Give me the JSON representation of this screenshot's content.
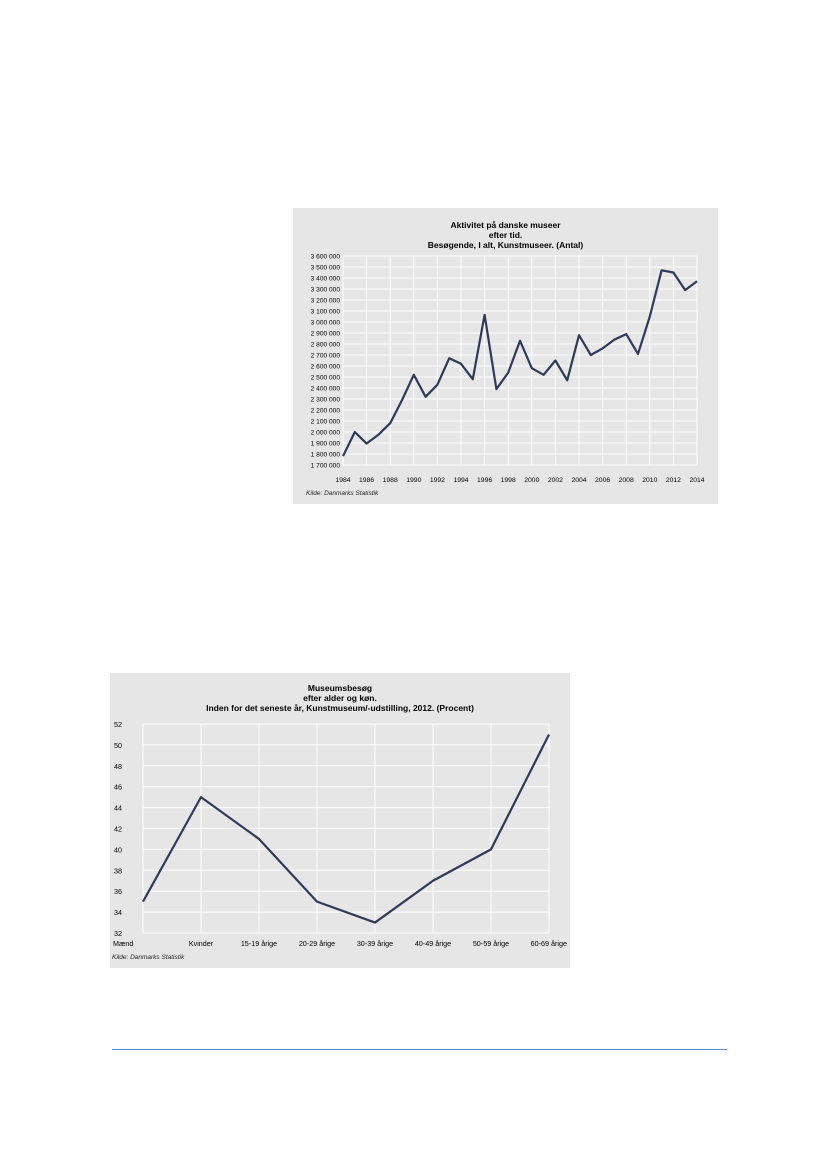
{
  "chart_data": [
    {
      "type": "line",
      "title": [
        "Aktivitet på danske museer",
        "efter tid.",
        "Besøgende, I alt, Kunstmuseer. (Antal)"
      ],
      "x": [
        1984,
        1985,
        1986,
        1987,
        1988,
        1989,
        1990,
        1991,
        1992,
        1993,
        1994,
        1995,
        1996,
        1997,
        1998,
        1999,
        2000,
        2001,
        2002,
        2003,
        2004,
        2005,
        2006,
        2007,
        2008,
        2009,
        2010,
        2011,
        2012,
        2013,
        2014
      ],
      "x_ticks": [
        "1984",
        "1986",
        "1988",
        "1990",
        "1992",
        "1994",
        "1996",
        "1998",
        "2000",
        "2002",
        "2004",
        "2006",
        "2008",
        "2010",
        "2012",
        "2014"
      ],
      "y_ticks": [
        "3 600 000",
        "3 500 000",
        "3 400 000",
        "3 300 000",
        "3 200 000",
        "3 100 000",
        "3 000 000",
        "2 900 000",
        "2 800 000",
        "2 700 000",
        "2 600 000",
        "2 500 000",
        "2 400 000",
        "2 300 000",
        "2 200 000",
        "2 100 000",
        "2 000 000",
        "1 900 000",
        "1 800 000",
        "1 700 000"
      ],
      "series": [
        {
          "values": [
            1780000,
            2000000,
            1895000,
            1975000,
            2080000,
            2290000,
            2520000,
            2320000,
            2430000,
            2670000,
            2620000,
            2480000,
            3065000,
            2390000,
            2540000,
            2830000,
            2580000,
            2520000,
            2650000,
            2470000,
            2880000,
            2700000,
            2760000,
            2840000,
            2890000,
            2710000,
            3050000,
            3470000,
            3450000,
            3290000,
            3370000
          ]
        }
      ],
      "ylim": [
        1700000,
        3600000
      ],
      "grid": true,
      "line_color": "#2e3a5a",
      "source": "Kilde: Danmarks Statistik"
    },
    {
      "type": "line",
      "title": [
        "Museumsbesøg",
        "efter alder og køn.",
        "Inden for det seneste år, Kunstmuseum/-udstilling, 2012. (Procent)"
      ],
      "categories": [
        "Mænd",
        "Kvinder",
        "15-19 årige",
        "20-29 årige",
        "30-39 årige",
        "40-49 årige",
        "50-59 årige",
        "60-69 årige"
      ],
      "y_ticks": [
        "52",
        "50",
        "48",
        "46",
        "44",
        "42",
        "40",
        "38",
        "36",
        "34",
        "32"
      ],
      "series": [
        {
          "values": [
            35,
            45,
            41,
            35,
            33,
            37,
            40,
            51
          ]
        }
      ],
      "ylim": [
        32,
        52
      ],
      "grid": true,
      "line_color": "#2e3a5a",
      "source": "Kilde: Danmarks Statistik"
    }
  ]
}
